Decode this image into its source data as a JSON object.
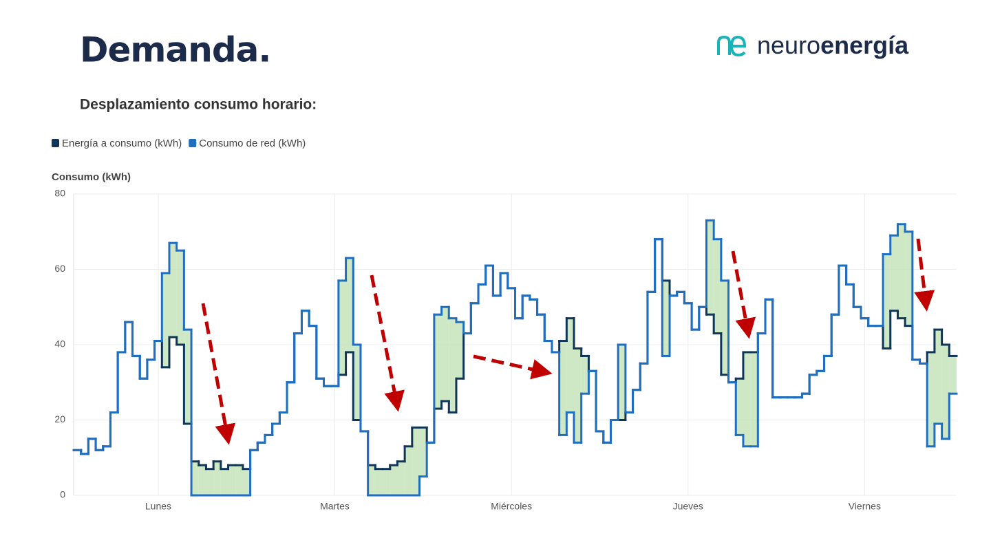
{
  "slide": {
    "title": "Demanda.",
    "logo": {
      "light": "neuro",
      "bold": "energía"
    },
    "subtitle": "Desplazamiento consumo horario:"
  },
  "chart_data": {
    "type": "step",
    "y_label": "Consumo (kWh)",
    "legend": "top-left",
    "grid": true,
    "fill_between": "#c5e3bb",
    "xlim": [
      0,
      120
    ],
    "xticks": [
      {
        "value": 11.5,
        "label": "Lunes"
      },
      {
        "value": 35.5,
        "label": "Martes"
      },
      {
        "value": 59.5,
        "label": "Miércoles"
      },
      {
        "value": 83.5,
        "label": "Jueves"
      },
      {
        "value": 107.5,
        "label": "Viernes"
      }
    ],
    "ylim": [
      0,
      80
    ],
    "yticks": [
      0,
      20,
      40,
      60,
      80
    ],
    "series": [
      {
        "name": "Energía a consumo (kWh)",
        "color": "#0f3557",
        "values": [
          12,
          11,
          15,
          12,
          13,
          22,
          38,
          46,
          37,
          31,
          36,
          41,
          34,
          42,
          40,
          19,
          9,
          8,
          7,
          9,
          7,
          8,
          8,
          7,
          12,
          14,
          16,
          19,
          22,
          30,
          43,
          49,
          45,
          31,
          29,
          29,
          32,
          38,
          20,
          17,
          8,
          7,
          7,
          8,
          9,
          13,
          18,
          18,
          14,
          23,
          25,
          22,
          31,
          43,
          51,
          56,
          61,
          53,
          59,
          55,
          47,
          53,
          52,
          48,
          41,
          38,
          41,
          47,
          39,
          37,
          33,
          17,
          14,
          20,
          20,
          22,
          28,
          35,
          54,
          68,
          57,
          53,
          54,
          51,
          44,
          50,
          48,
          43,
          32,
          30,
          31,
          38,
          38,
          43,
          52,
          26,
          26,
          26,
          26,
          27,
          32,
          33,
          37,
          48,
          61,
          56,
          50,
          47,
          45,
          45,
          39,
          49,
          47,
          45,
          36,
          35,
          38,
          44,
          40,
          37
        ]
      },
      {
        "name": "Consumo de red (kWh)",
        "color": "#1e6fc1",
        "values": [
          12,
          11,
          15,
          12,
          13,
          22,
          38,
          46,
          37,
          31,
          36,
          41,
          59,
          67,
          65,
          44,
          0,
          0,
          0,
          0,
          0,
          0,
          0,
          0,
          12,
          14,
          16,
          19,
          22,
          30,
          43,
          49,
          45,
          31,
          29,
          29,
          57,
          63,
          40,
          17,
          0,
          0,
          0,
          0,
          0,
          0,
          0,
          5,
          14,
          48,
          50,
          47,
          46,
          43,
          51,
          56,
          61,
          53,
          59,
          55,
          47,
          53,
          52,
          48,
          41,
          38,
          16,
          22,
          14,
          27,
          33,
          17,
          14,
          20,
          40,
          22,
          28,
          35,
          54,
          68,
          37,
          53,
          54,
          51,
          44,
          50,
          73,
          68,
          57,
          30,
          16,
          13,
          13,
          43,
          52,
          26,
          26,
          26,
          26,
          27,
          32,
          33,
          37,
          48,
          61,
          56,
          50,
          47,
          45,
          45,
          64,
          69,
          72,
          70,
          36,
          35,
          13,
          19,
          15,
          27
        ]
      }
    ]
  }
}
